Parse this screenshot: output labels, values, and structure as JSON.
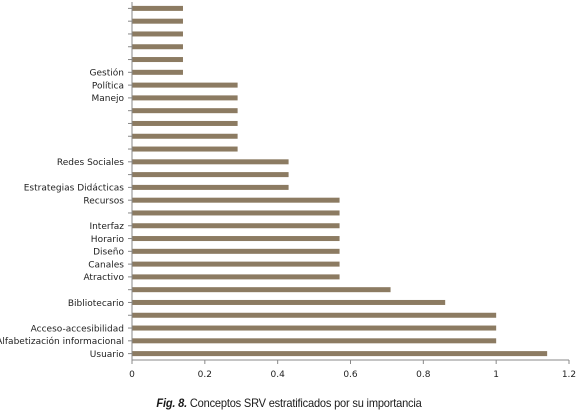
{
  "chart_data": {
    "type": "bar",
    "orientation": "horizontal",
    "categories": [
      "Usuario",
      "Alfabetización informacional",
      "Acceso-accesibilidad",
      "",
      "Bibliotecario",
      "",
      "Atractivo",
      "Canales",
      "Diseño",
      "Horario",
      "Interfaz",
      "",
      "Recursos",
      "Estrategias Didácticas",
      "",
      "Redes Sociales",
      "",
      "",
      "",
      "",
      "Manejo",
      "Política",
      "Gestión",
      "",
      "",
      "",
      "",
      ""
    ],
    "values": [
      1.14,
      1.0,
      1.0,
      1.0,
      0.86,
      0.71,
      0.57,
      0.57,
      0.57,
      0.57,
      0.57,
      0.57,
      0.57,
      0.43,
      0.43,
      0.43,
      0.29,
      0.29,
      0.29,
      0.29,
      0.29,
      0.29,
      0.14,
      0.14,
      0.14,
      0.14,
      0.14,
      0.14
    ],
    "xlim": [
      0,
      1.2
    ],
    "xticks": [
      "0",
      "0.2",
      "0.4",
      "0.6",
      "0.8",
      "1",
      "1.2"
    ],
    "grid": false,
    "bar_color": "#8c7b62"
  },
  "caption": {
    "fig_label": "Fig. 8.",
    "text": " Conceptos SRV estratificados por su importancia"
  }
}
